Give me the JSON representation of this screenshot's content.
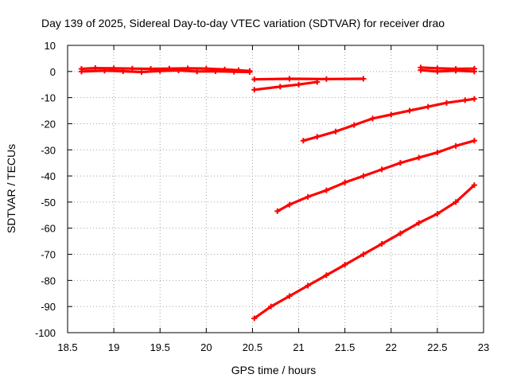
{
  "chart_data": {
    "type": "line",
    "title": "Day 139 of 2025, Sidereal Day-to-day VTEC variation (SDTVAR) for receiver drao",
    "xlabel": "GPS time / hours",
    "ylabel": "SDTVAR / TECUs",
    "xlim": [
      18.5,
      23
    ],
    "ylim": [
      -100,
      10
    ],
    "xticks": [
      18.5,
      19,
      19.5,
      20,
      20.5,
      21,
      21.5,
      22,
      22.5,
      23
    ],
    "yticks": [
      10,
      0,
      -10,
      -20,
      -30,
      -40,
      -50,
      -60,
      -70,
      -80,
      -90,
      -100
    ],
    "grid": true,
    "legend": "none",
    "color": "#ff0000",
    "series": [
      {
        "name": "near-zero band early",
        "x": [
          18.65,
          18.8,
          19.0,
          19.2,
          19.4,
          19.6,
          19.8,
          20.0,
          20.2,
          20.35,
          20.47
        ],
        "y": [
          1.0,
          1.3,
          1.2,
          1.1,
          1.0,
          1.1,
          1.2,
          1.1,
          0.8,
          0.5,
          0.2
        ]
      },
      {
        "name": "near-zero band early (spread)",
        "x": [
          18.65,
          18.9,
          19.1,
          19.3,
          19.5,
          19.7,
          19.9,
          20.1,
          20.3,
          20.47
        ],
        "y": [
          0.0,
          0.3,
          0.1,
          -0.2,
          0.2,
          0.4,
          0.0,
          0.1,
          -0.1,
          -0.2
        ]
      },
      {
        "name": "flat segment near -3",
        "x": [
          20.52,
          20.9,
          21.3,
          21.7
        ],
        "y": [
          -3.0,
          -2.8,
          -2.9,
          -2.8
        ]
      },
      {
        "name": "short rising segment",
        "x": [
          20.52,
          20.8,
          21.0,
          21.2
        ],
        "y": [
          -7.0,
          -5.8,
          -5.0,
          -4.0
        ]
      },
      {
        "name": "near-zero band late",
        "x": [
          22.32,
          22.5,
          22.7,
          22.9
        ],
        "y": [
          1.5,
          1.2,
          1.0,
          1.1
        ]
      },
      {
        "name": "near-zero band late (spread)",
        "x": [
          22.32,
          22.5,
          22.7,
          22.9
        ],
        "y": [
          0.5,
          0.0,
          0.3,
          0.0
        ]
      },
      {
        "name": "arc starting 21.05",
        "x": [
          21.05,
          21.2,
          21.4,
          21.6,
          21.8,
          22.0,
          22.2,
          22.4,
          22.6,
          22.8,
          22.9
        ],
        "y": [
          -26.5,
          -25.0,
          -23.0,
          -20.5,
          -18.0,
          -16.5,
          -15.0,
          -13.5,
          -12.0,
          -11.0,
          -10.5
        ]
      },
      {
        "name": "arc starting 20.77",
        "x": [
          20.77,
          20.9,
          21.1,
          21.3,
          21.5,
          21.7,
          21.9,
          22.1,
          22.3,
          22.5,
          22.7,
          22.9
        ],
        "y": [
          -53.5,
          -51.0,
          -48.0,
          -45.5,
          -42.5,
          -40.0,
          -37.5,
          -35.0,
          -33.0,
          -31.0,
          -28.5,
          -26.5
        ]
      },
      {
        "name": "arc starting 20.52",
        "x": [
          20.52,
          20.7,
          20.9,
          21.1,
          21.3,
          21.5,
          21.7,
          21.9,
          22.1,
          22.3,
          22.5,
          22.7,
          22.9
        ],
        "y": [
          -94.5,
          -90.0,
          -86.0,
          -82.0,
          -78.0,
          -74.0,
          -70.0,
          -66.0,
          -62.0,
          -58.0,
          -54.5,
          -50.0,
          -43.5
        ]
      }
    ]
  }
}
